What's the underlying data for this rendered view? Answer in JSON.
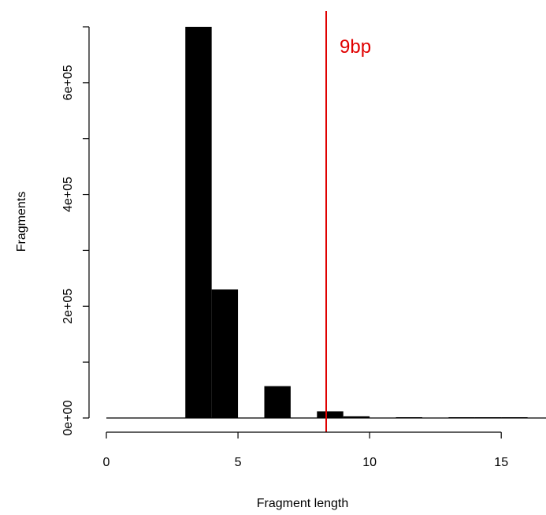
{
  "chart_data": {
    "type": "bar",
    "title": "",
    "xlabel": "Fragment length",
    "ylabel": "Fragments",
    "xlim": [
      0,
      16.7
    ],
    "ylim": [
      0,
      700000
    ],
    "x_ticks": [
      0,
      5,
      10,
      15
    ],
    "x_tick_labels": [
      "0",
      "5",
      "10",
      "15"
    ],
    "y_ticks": [
      0,
      200000,
      400000,
      600000
    ],
    "y_tick_labels": [
      "0e+00",
      "2e+05",
      "4e+05",
      "6e+05"
    ],
    "bin_width": 1,
    "bars": [
      {
        "x0": 0,
        "x1": 1,
        "value": 0
      },
      {
        "x0": 1,
        "x1": 2,
        "value": 0
      },
      {
        "x0": 2,
        "x1": 3,
        "value": 0
      },
      {
        "x0": 3,
        "x1": 4,
        "value": 700000
      },
      {
        "x0": 4,
        "x1": 5,
        "value": 230000
      },
      {
        "x0": 5,
        "x1": 6,
        "value": 0
      },
      {
        "x0": 6,
        "x1": 7,
        "value": 57000
      },
      {
        "x0": 7,
        "x1": 8,
        "value": 0
      },
      {
        "x0": 8,
        "x1": 9,
        "value": 12000
      },
      {
        "x0": 9,
        "x1": 10,
        "value": 3000
      },
      {
        "x0": 10,
        "x1": 11,
        "value": 0
      },
      {
        "x0": 11,
        "x1": 12,
        "value": 800
      },
      {
        "x0": 12,
        "x1": 13,
        "value": 0
      },
      {
        "x0": 13,
        "x1": 14,
        "value": 300
      },
      {
        "x0": 14,
        "x1": 15,
        "value": 200
      },
      {
        "x0": 15,
        "x1": 16,
        "value": 100
      },
      {
        "x0": 16,
        "x1": 16.7,
        "value": 0
      }
    ],
    "bar_color": "#000000",
    "vline": {
      "x": 8.35,
      "label": "9bp",
      "color": "#e00000"
    },
    "grid": false,
    "legend": "none"
  }
}
